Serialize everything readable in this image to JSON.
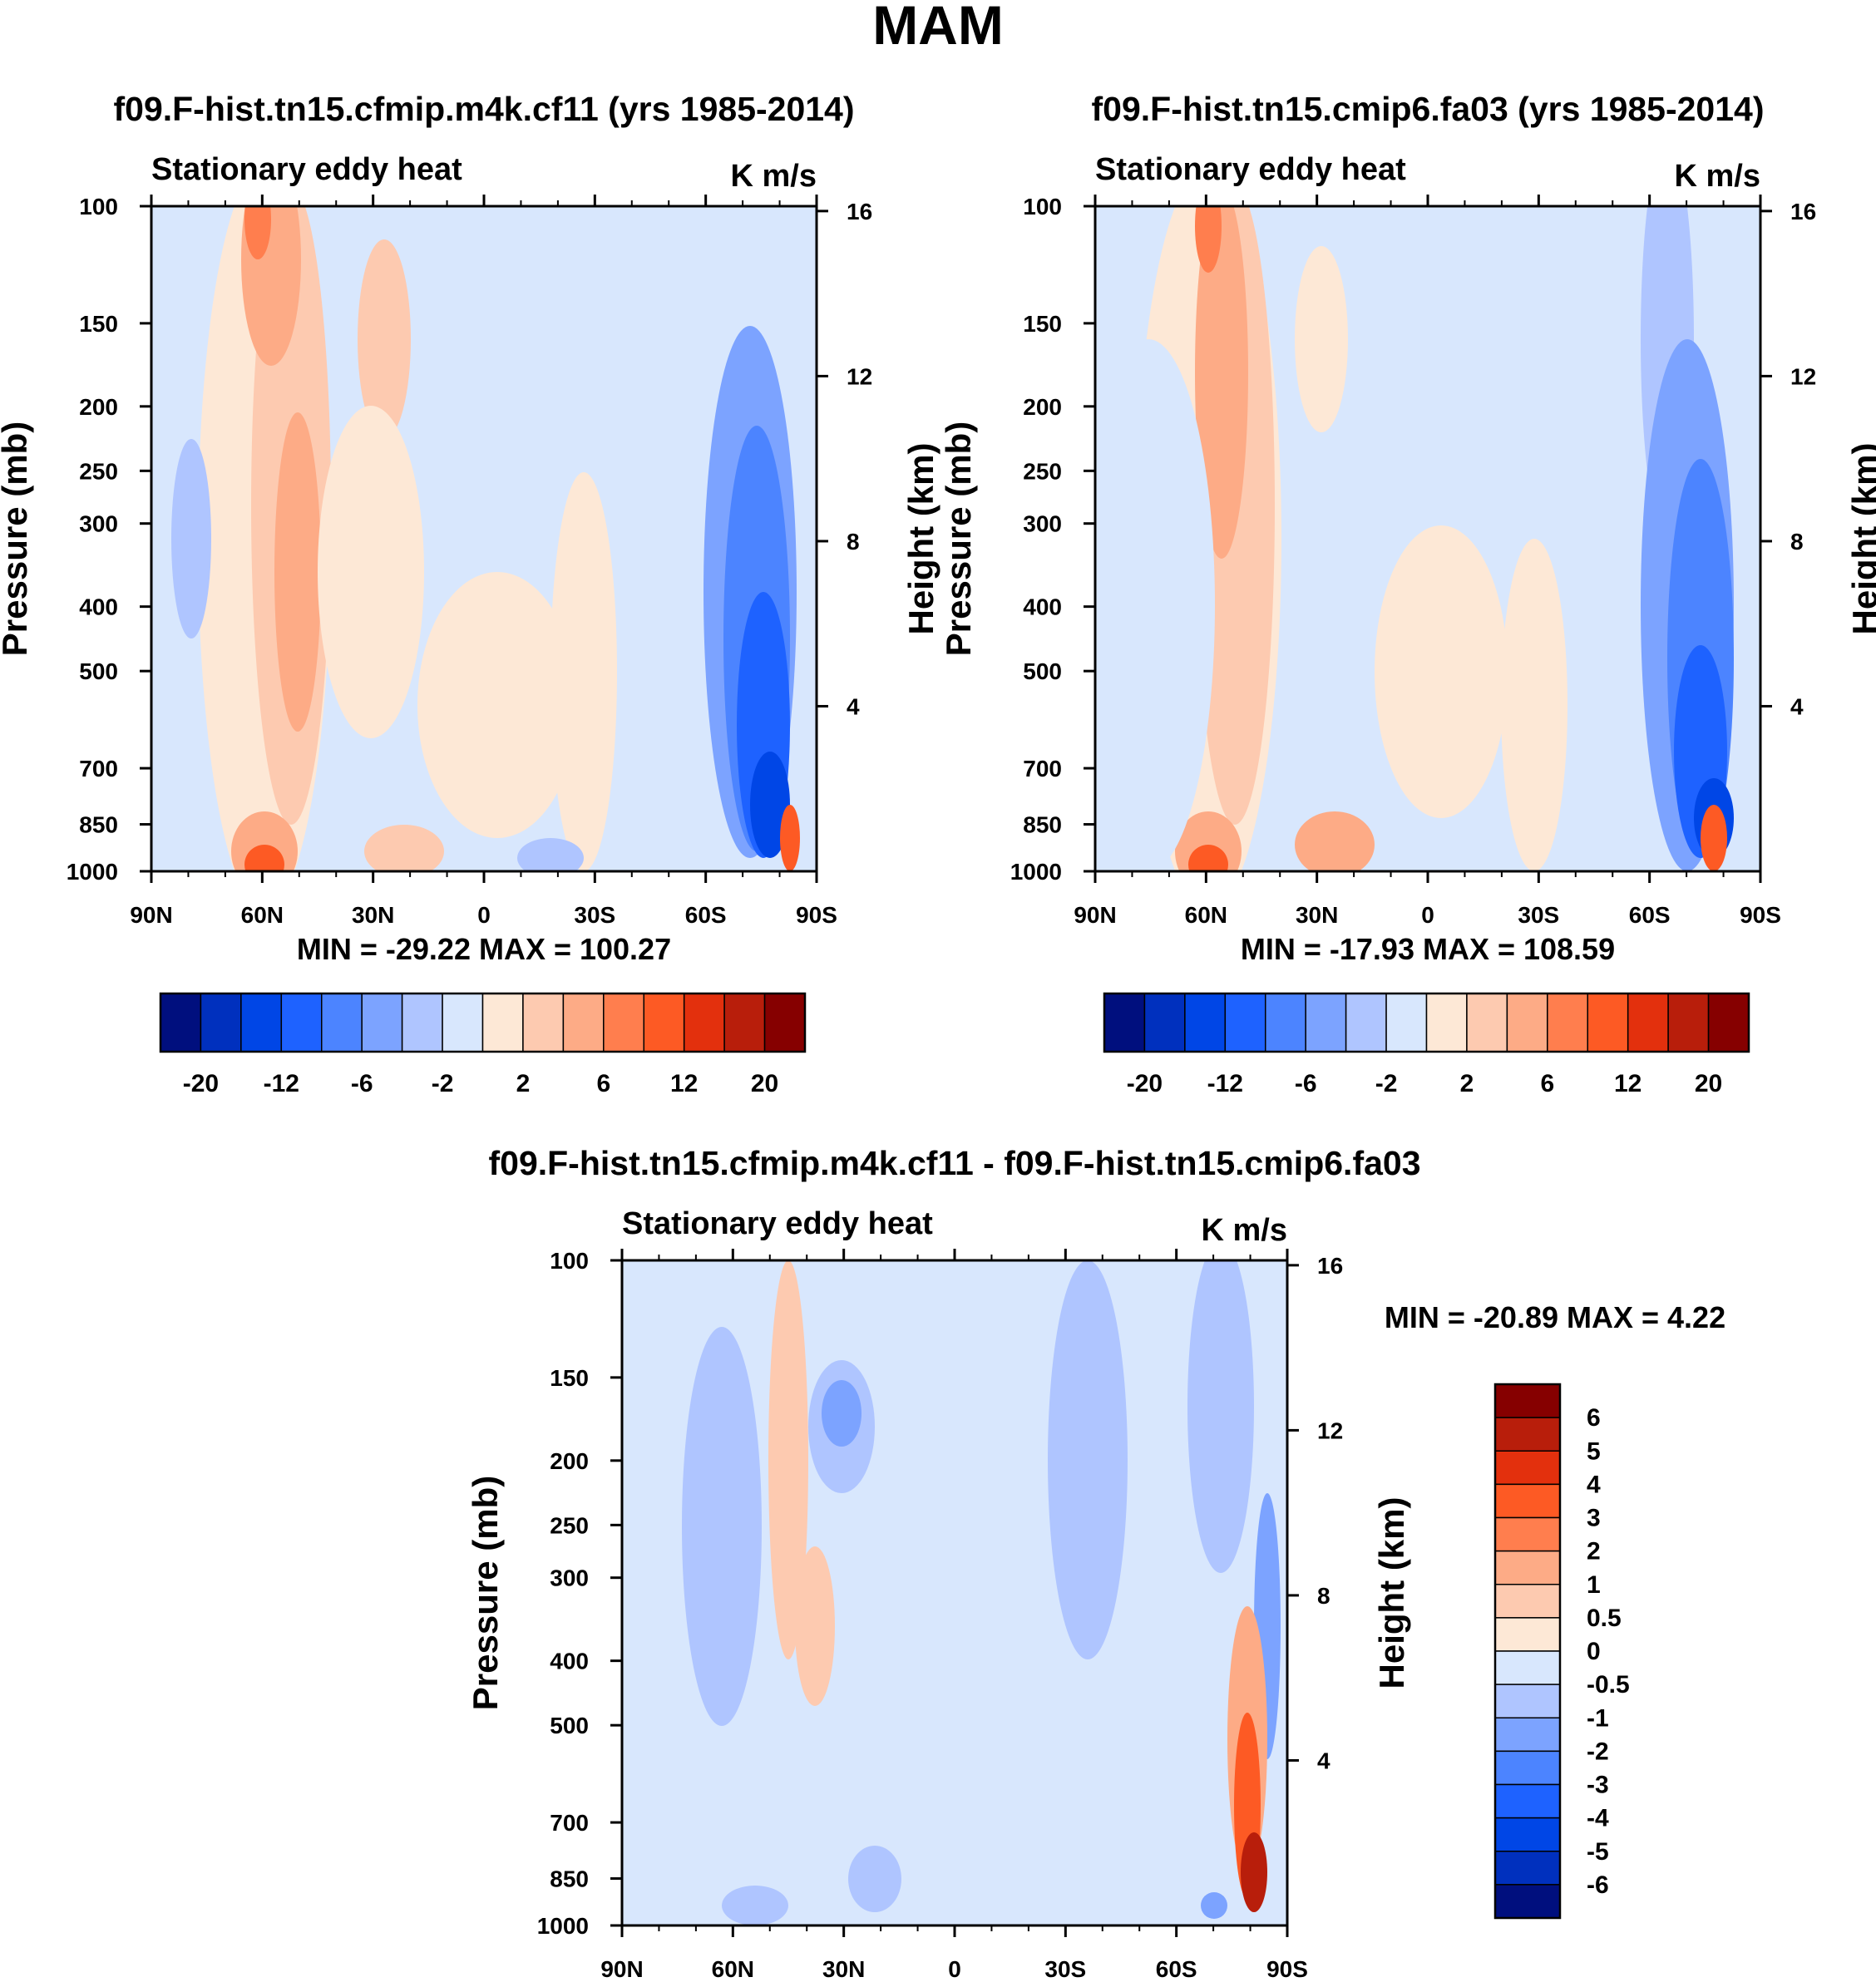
{
  "page": {
    "title": "MAM"
  },
  "chart_data": [
    {
      "type": "heatmap",
      "title": "f09.F-hist.tn15.cfmip.m4k.cf11 (yrs 1985-2014)",
      "left_subtitle": "Stationary eddy heat",
      "units": "K m/s",
      "ylabel": "Pressure (mb)",
      "ylabel_right": "Height (km)",
      "x_ticks": [
        "90N",
        "60N",
        "30N",
        "0",
        "30S",
        "60S",
        "90S"
      ],
      "y_ticks": [
        "100",
        "150",
        "200",
        "250",
        "300",
        "400",
        "500",
        "700",
        "850",
        "1000"
      ],
      "y2_ticks": [
        "16",
        "12",
        "8",
        "4"
      ],
      "stats": "MIN = -29.22  MAX = 100.27",
      "legend": {
        "orientation": "horizontal",
        "labels": [
          "-20",
          "-12",
          "-6",
          "-2",
          "2",
          "6",
          "12",
          "20"
        ],
        "colors": [
          "#000f7e",
          "#0030be",
          "#0046e6",
          "#1e62ff",
          "#4c84ff",
          "#7ca3ff",
          "#afc5ff",
          "#d8e7fd",
          "#fde8d6",
          "#fdcab0",
          "#fdab86",
          "#ff7e4e",
          "#fd5a24",
          "#e3300d",
          "#b81e0b",
          "#860000"
        ]
      },
      "blobs": [
        {
          "x": 0.17,
          "y": 0.5,
          "rx": 0.1,
          "ry": 0.56,
          "c": 8
        },
        {
          "x": 0.21,
          "y": 0.45,
          "rx": 0.06,
          "ry": 0.48,
          "c": 9
        },
        {
          "x": 0.18,
          "y": 0.08,
          "rx": 0.045,
          "ry": 0.16,
          "c": 10
        },
        {
          "x": 0.22,
          "y": 0.55,
          "rx": 0.035,
          "ry": 0.24,
          "c": 10
        },
        {
          "x": 0.16,
          "y": 0.02,
          "rx": 0.02,
          "ry": 0.06,
          "c": 11
        },
        {
          "x": 0.17,
          "y": 0.97,
          "rx": 0.05,
          "ry": 0.06,
          "c": 10
        },
        {
          "x": 0.17,
          "y": 0.99,
          "rx": 0.03,
          "ry": 0.03,
          "c": 12
        },
        {
          "x": 0.35,
          "y": 0.2,
          "rx": 0.04,
          "ry": 0.15,
          "c": 9
        },
        {
          "x": 0.33,
          "y": 0.55,
          "rx": 0.08,
          "ry": 0.25,
          "c": 8
        },
        {
          "x": 0.52,
          "y": 0.75,
          "rx": 0.12,
          "ry": 0.2,
          "c": 8
        },
        {
          "x": 0.65,
          "y": 0.7,
          "rx": 0.05,
          "ry": 0.3,
          "c": 8
        },
        {
          "x": 0.06,
          "y": 0.5,
          "rx": 0.03,
          "ry": 0.15,
          "c": 6
        },
        {
          "x": 0.38,
          "y": 0.97,
          "rx": 0.06,
          "ry": 0.04,
          "c": 9
        },
        {
          "x": 0.6,
          "y": 0.98,
          "rx": 0.05,
          "ry": 0.03,
          "c": 6
        },
        {
          "x": 0.9,
          "y": 0.58,
          "rx": 0.07,
          "ry": 0.4,
          "c": 5
        },
        {
          "x": 0.91,
          "y": 0.65,
          "rx": 0.05,
          "ry": 0.32,
          "c": 4
        },
        {
          "x": 0.92,
          "y": 0.78,
          "rx": 0.04,
          "ry": 0.2,
          "c": 3
        },
        {
          "x": 0.93,
          "y": 0.9,
          "rx": 0.03,
          "ry": 0.08,
          "c": 2
        },
        {
          "x": 0.96,
          "y": 0.95,
          "rx": 0.015,
          "ry": 0.05,
          "c": 12
        }
      ]
    },
    {
      "type": "heatmap",
      "title": "f09.F-hist.tn15.cmip6.fa03 (yrs 1985-2014)",
      "left_subtitle": "Stationary eddy heat",
      "units": "K m/s",
      "ylabel": "Pressure (mb)",
      "ylabel_right": "Height (km)",
      "x_ticks": [
        "90N",
        "60N",
        "30N",
        "0",
        "30S",
        "60S",
        "90S"
      ],
      "y_ticks": [
        "100",
        "150",
        "200",
        "250",
        "300",
        "400",
        "500",
        "700",
        "850",
        "1000"
      ],
      "y2_ticks": [
        "16",
        "12",
        "8",
        "4"
      ],
      "stats": "MIN = -17.93  MAX = 108.59",
      "legend": {
        "orientation": "horizontal",
        "labels": [
          "-20",
          "-12",
          "-6",
          "-2",
          "2",
          "6",
          "12",
          "20"
        ],
        "colors": [
          "#000f7e",
          "#0030be",
          "#0046e6",
          "#1e62ff",
          "#4c84ff",
          "#7ca3ff",
          "#afc5ff",
          "#d8e7fd",
          "#fde8d6",
          "#fdcab0",
          "#fdab86",
          "#ff7e4e",
          "#fd5a24",
          "#e3300d",
          "#b81e0b",
          "#860000"
        ]
      },
      "blobs": [
        {
          "x": 0.17,
          "y": 0.5,
          "rx": 0.11,
          "ry": 0.56,
          "c": 8
        },
        {
          "x": 0.21,
          "y": 0.45,
          "rx": 0.06,
          "ry": 0.48,
          "c": 9
        },
        {
          "x": 0.19,
          "y": 0.25,
          "rx": 0.04,
          "ry": 0.28,
          "c": 10
        },
        {
          "x": 0.17,
          "y": 0.03,
          "rx": 0.02,
          "ry": 0.07,
          "c": 11
        },
        {
          "x": 0.17,
          "y": 0.97,
          "rx": 0.05,
          "ry": 0.06,
          "c": 10
        },
        {
          "x": 0.17,
          "y": 0.99,
          "rx": 0.03,
          "ry": 0.03,
          "c": 12
        },
        {
          "x": 0.34,
          "y": 0.2,
          "rx": 0.04,
          "ry": 0.14,
          "c": 8
        },
        {
          "x": 0.06,
          "y": 0.55,
          "rx": 0.04,
          "ry": 0.18,
          "c": 6
        },
        {
          "x": 0.08,
          "y": 0.6,
          "rx": 0.1,
          "ry": 0.4,
          "c": 7
        },
        {
          "x": 0.36,
          "y": 0.96,
          "rx": 0.06,
          "ry": 0.05,
          "c": 10
        },
        {
          "x": 0.52,
          "y": 0.7,
          "rx": 0.1,
          "ry": 0.22,
          "c": 8
        },
        {
          "x": 0.66,
          "y": 0.75,
          "rx": 0.05,
          "ry": 0.25,
          "c": 8
        },
        {
          "x": 0.86,
          "y": 0.2,
          "rx": 0.04,
          "ry": 0.3,
          "c": 6
        },
        {
          "x": 0.89,
          "y": 0.6,
          "rx": 0.07,
          "ry": 0.4,
          "c": 5
        },
        {
          "x": 0.91,
          "y": 0.68,
          "rx": 0.05,
          "ry": 0.3,
          "c": 4
        },
        {
          "x": 0.91,
          "y": 0.82,
          "rx": 0.04,
          "ry": 0.16,
          "c": 3
        },
        {
          "x": 0.93,
          "y": 0.92,
          "rx": 0.03,
          "ry": 0.06,
          "c": 2
        },
        {
          "x": 0.93,
          "y": 0.95,
          "rx": 0.02,
          "ry": 0.05,
          "c": 12
        }
      ]
    },
    {
      "type": "heatmap",
      "title": "f09.F-hist.tn15.cfmip.m4k.cf11 - f09.F-hist.tn15.cmip6.fa03",
      "left_subtitle": "Stationary eddy heat",
      "units": "K m/s",
      "ylabel": "Pressure (mb)",
      "ylabel_right": "Height (km)",
      "x_ticks": [
        "90N",
        "60N",
        "30N",
        "0",
        "30S",
        "60S",
        "90S"
      ],
      "y_ticks": [
        "100",
        "150",
        "200",
        "250",
        "300",
        "400",
        "500",
        "700",
        "850",
        "1000"
      ],
      "y2_ticks": [
        "16",
        "12",
        "8",
        "4"
      ],
      "stats": "MIN = -20.89  MAX =    4.22",
      "legend": {
        "orientation": "vertical",
        "labels": [
          "6",
          "5",
          "4",
          "3",
          "2",
          "1",
          "0.5",
          "0",
          "-0.5",
          "-1",
          "-2",
          "-3",
          "-4",
          "-5",
          "-6"
        ],
        "colors": [
          "#860000",
          "#b81e0b",
          "#e3300d",
          "#fd5a24",
          "#ff7e4e",
          "#fdab86",
          "#fdcab0",
          "#fde8d6",
          "#d8e7fd",
          "#afc5ff",
          "#7ca3ff",
          "#4c84ff",
          "#1e62ff",
          "#0046e6",
          "#0030be",
          "#000f7e"
        ]
      },
      "blobs": [
        {
          "x": 0.15,
          "y": 0.4,
          "rx": 0.06,
          "ry": 0.3,
          "c": 9
        },
        {
          "x": 0.25,
          "y": 0.3,
          "rx": 0.03,
          "ry": 0.3,
          "c": 6
        },
        {
          "x": 0.33,
          "y": 0.25,
          "rx": 0.05,
          "ry": 0.1,
          "c": 9
        },
        {
          "x": 0.33,
          "y": 0.23,
          "rx": 0.03,
          "ry": 0.05,
          "c": 10
        },
        {
          "x": 0.29,
          "y": 0.55,
          "rx": 0.03,
          "ry": 0.12,
          "c": 6
        },
        {
          "x": 0.7,
          "y": 0.3,
          "rx": 0.06,
          "ry": 0.3,
          "c": 9
        },
        {
          "x": 0.9,
          "y": 0.22,
          "rx": 0.05,
          "ry": 0.25,
          "c": 9
        },
        {
          "x": 0.97,
          "y": 0.55,
          "rx": 0.02,
          "ry": 0.2,
          "c": 10
        },
        {
          "x": 0.94,
          "y": 0.72,
          "rx": 0.03,
          "ry": 0.2,
          "c": 5
        },
        {
          "x": 0.94,
          "y": 0.82,
          "rx": 0.02,
          "ry": 0.14,
          "c": 3
        },
        {
          "x": 0.95,
          "y": 0.92,
          "rx": 0.02,
          "ry": 0.06,
          "c": 1
        },
        {
          "x": 0.89,
          "y": 0.97,
          "rx": 0.02,
          "ry": 0.02,
          "c": 10
        },
        {
          "x": 0.38,
          "y": 0.93,
          "rx": 0.04,
          "ry": 0.05,
          "c": 9
        },
        {
          "x": 0.2,
          "y": 0.97,
          "rx": 0.05,
          "ry": 0.03,
          "c": 9
        }
      ]
    }
  ]
}
